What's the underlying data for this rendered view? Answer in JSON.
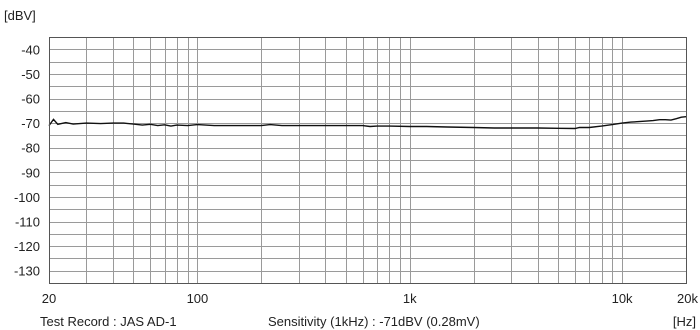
{
  "chart_data": {
    "type": "line",
    "ylabel": "[dBV]",
    "xlabel": "[Hz]",
    "x_scale": "log",
    "xlim": [
      20,
      20000
    ],
    "ylim": [
      -135,
      -35
    ],
    "grid": true,
    "y_ticks": [
      "-40",
      "-50",
      "-60",
      "-70",
      "-80",
      "-90",
      "-100",
      "-110",
      "-120",
      "-130"
    ],
    "x_ticks": [
      {
        "value": 20,
        "label": "20"
      },
      {
        "value": 100,
        "label": "100"
      },
      {
        "value": 1000,
        "label": "1k"
      },
      {
        "value": 10000,
        "label": "10k"
      },
      {
        "value": 20000,
        "label": "20k"
      }
    ],
    "series": [
      {
        "x": [
          20,
          21,
          22,
          24,
          26,
          30,
          35,
          40,
          45,
          50,
          55,
          60,
          65,
          70,
          75,
          80,
          90,
          100,
          120,
          150,
          200,
          220,
          250,
          300,
          400,
          500,
          600,
          650,
          700,
          800,
          1000,
          1200,
          1500,
          2000,
          2500,
          3000,
          4000,
          5000,
          6000,
          6300,
          7000,
          8000,
          9000,
          10000,
          11000,
          12000,
          13000,
          14000,
          15000,
          16000,
          17000,
          18000,
          19000,
          20000
        ],
        "y": [
          -71,
          -68.5,
          -70.5,
          -69.8,
          -70.4,
          -70,
          -70.2,
          -70,
          -70,
          -70.4,
          -70.8,
          -70.5,
          -71,
          -70.7,
          -71.2,
          -70.8,
          -71,
          -70.6,
          -71,
          -71,
          -71,
          -70.6,
          -71,
          -71,
          -71,
          -71,
          -71,
          -71.4,
          -71.2,
          -71.2,
          -71.4,
          -71.4,
          -71.6,
          -71.8,
          -72,
          -72,
          -72,
          -72.1,
          -72.2,
          -71.8,
          -71.8,
          -71.2,
          -70.6,
          -70,
          -69.6,
          -69.4,
          -69.2,
          -69,
          -68.6,
          -68.6,
          -68.8,
          -68.2,
          -67.6,
          -67.4
        ]
      }
    ]
  },
  "footer": {
    "record": "Test Record : JAS AD-1",
    "sensitivity": "Sensitivity (1kHz) : -71dBV (0.28mV)"
  },
  "colors": {
    "curve": "#111111",
    "grid": "#9a9a9a",
    "frame": "#555555"
  }
}
